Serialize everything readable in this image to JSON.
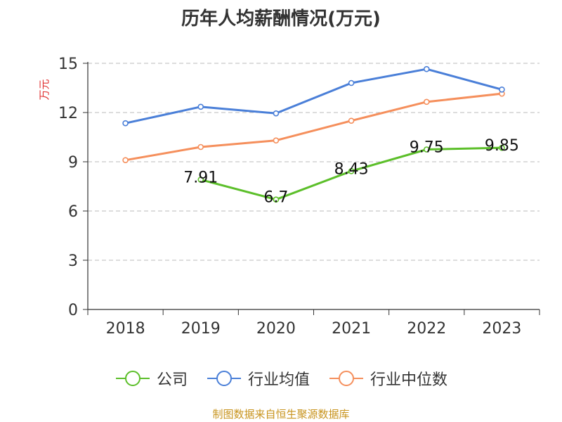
{
  "chart_data": {
    "type": "line",
    "title": "历年人均薪酬情况(万元)",
    "ylabel": "万元",
    "xlabel": "",
    "categories": [
      "2018",
      "2019",
      "2020",
      "2021",
      "2022",
      "2023"
    ],
    "ylim": [
      0,
      15
    ],
    "yticks": [
      "0",
      "3",
      "6",
      "9",
      "12",
      "15"
    ],
    "grid": true,
    "legend_position": "bottom",
    "series": [
      {
        "name": "公司",
        "color": "#5cbf2a",
        "values": [
          null,
          7.91,
          6.7,
          8.43,
          9.75,
          9.85
        ],
        "labels": [
          "",
          "7.91",
          "6.7",
          "8.43",
          "9.75",
          "9.85"
        ]
      },
      {
        "name": "行业均值",
        "color": "#4a7fd8",
        "values": [
          11.35,
          12.35,
          11.95,
          13.8,
          14.65,
          13.4
        ]
      },
      {
        "name": "行业中位数",
        "color": "#f58f5c",
        "values": [
          9.1,
          9.9,
          10.3,
          11.5,
          12.65,
          13.15
        ]
      }
    ]
  },
  "source_note": "制图数据来自恒生聚源数据库"
}
